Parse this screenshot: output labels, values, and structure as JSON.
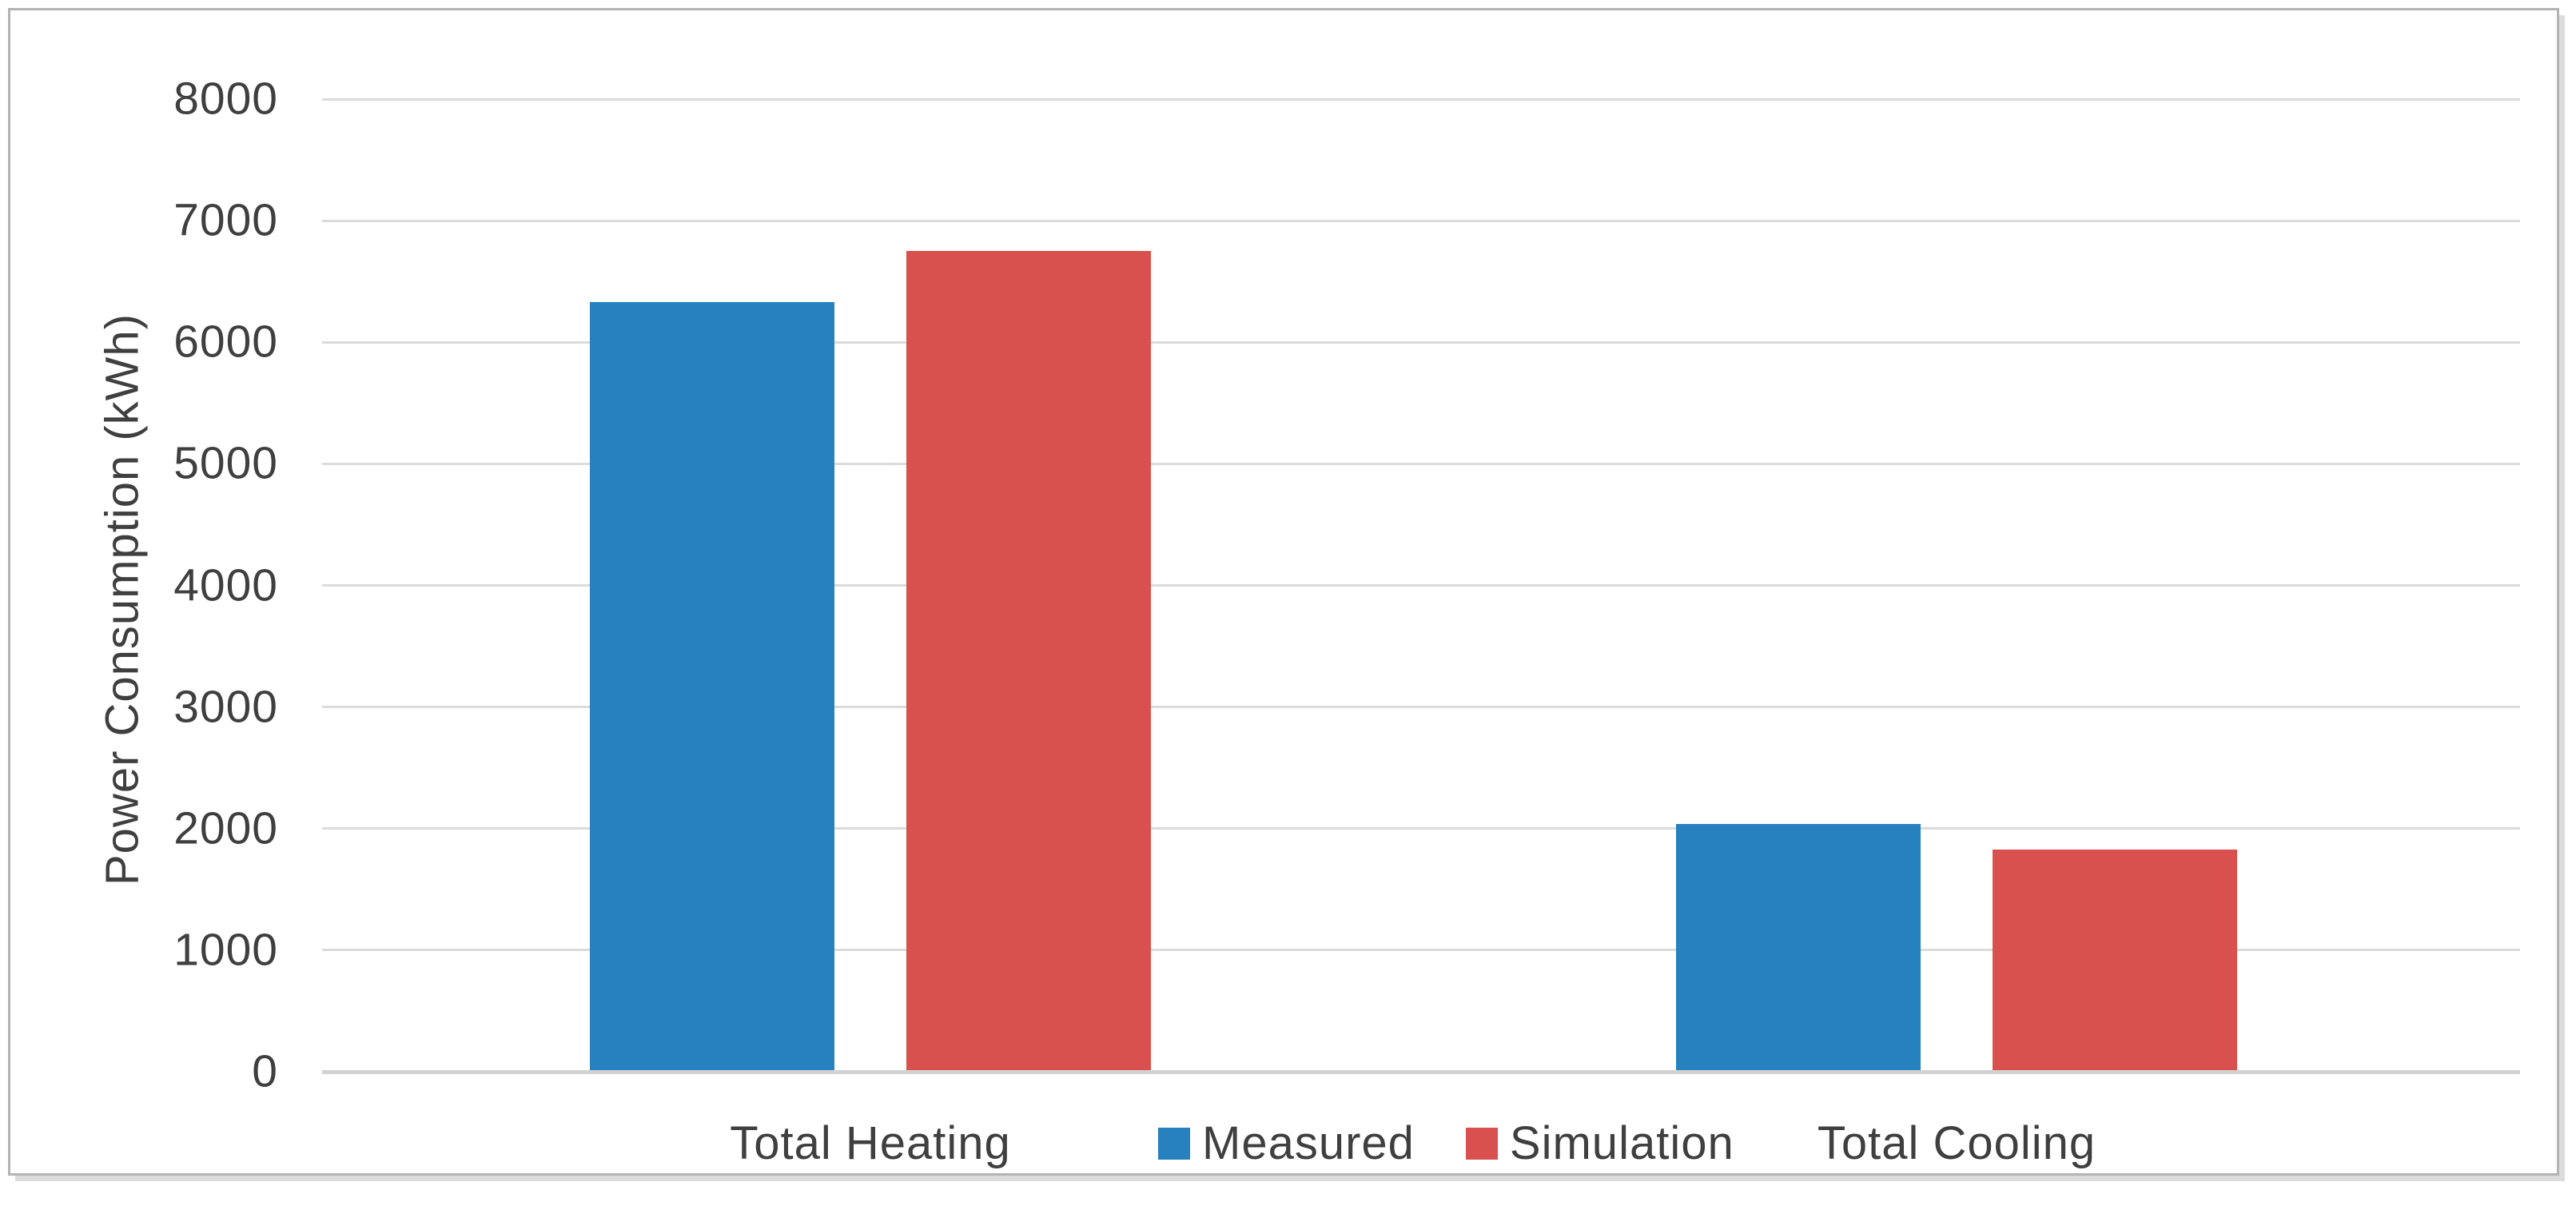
{
  "chart_data": {
    "type": "bar",
    "categories": [
      "Total Heating",
      "Total Cooling"
    ],
    "series": [
      {
        "name": "Measured",
        "color": "#2781BE",
        "values": [
          6330,
          2040
        ]
      },
      {
        "name": "Simulation",
        "color": "#D9514E",
        "values": [
          6750,
          1830
        ]
      }
    ],
    "title": "",
    "xlabel": "",
    "ylabel": "Power Consumption (kWh)",
    "ylim": [
      0,
      8000
    ],
    "ytick_step": 1000,
    "yticks": [
      0,
      1000,
      2000,
      3000,
      4000,
      5000,
      6000,
      7000,
      8000
    ],
    "grid": "horizontal",
    "legend_position": "bottom-inline",
    "colors": {
      "gridline": "#DBDBDB",
      "baseline": "#D2D2D2",
      "text": "#3F3F3F",
      "card_border": "#B3B3B3",
      "background": "#FFFFFF"
    }
  }
}
